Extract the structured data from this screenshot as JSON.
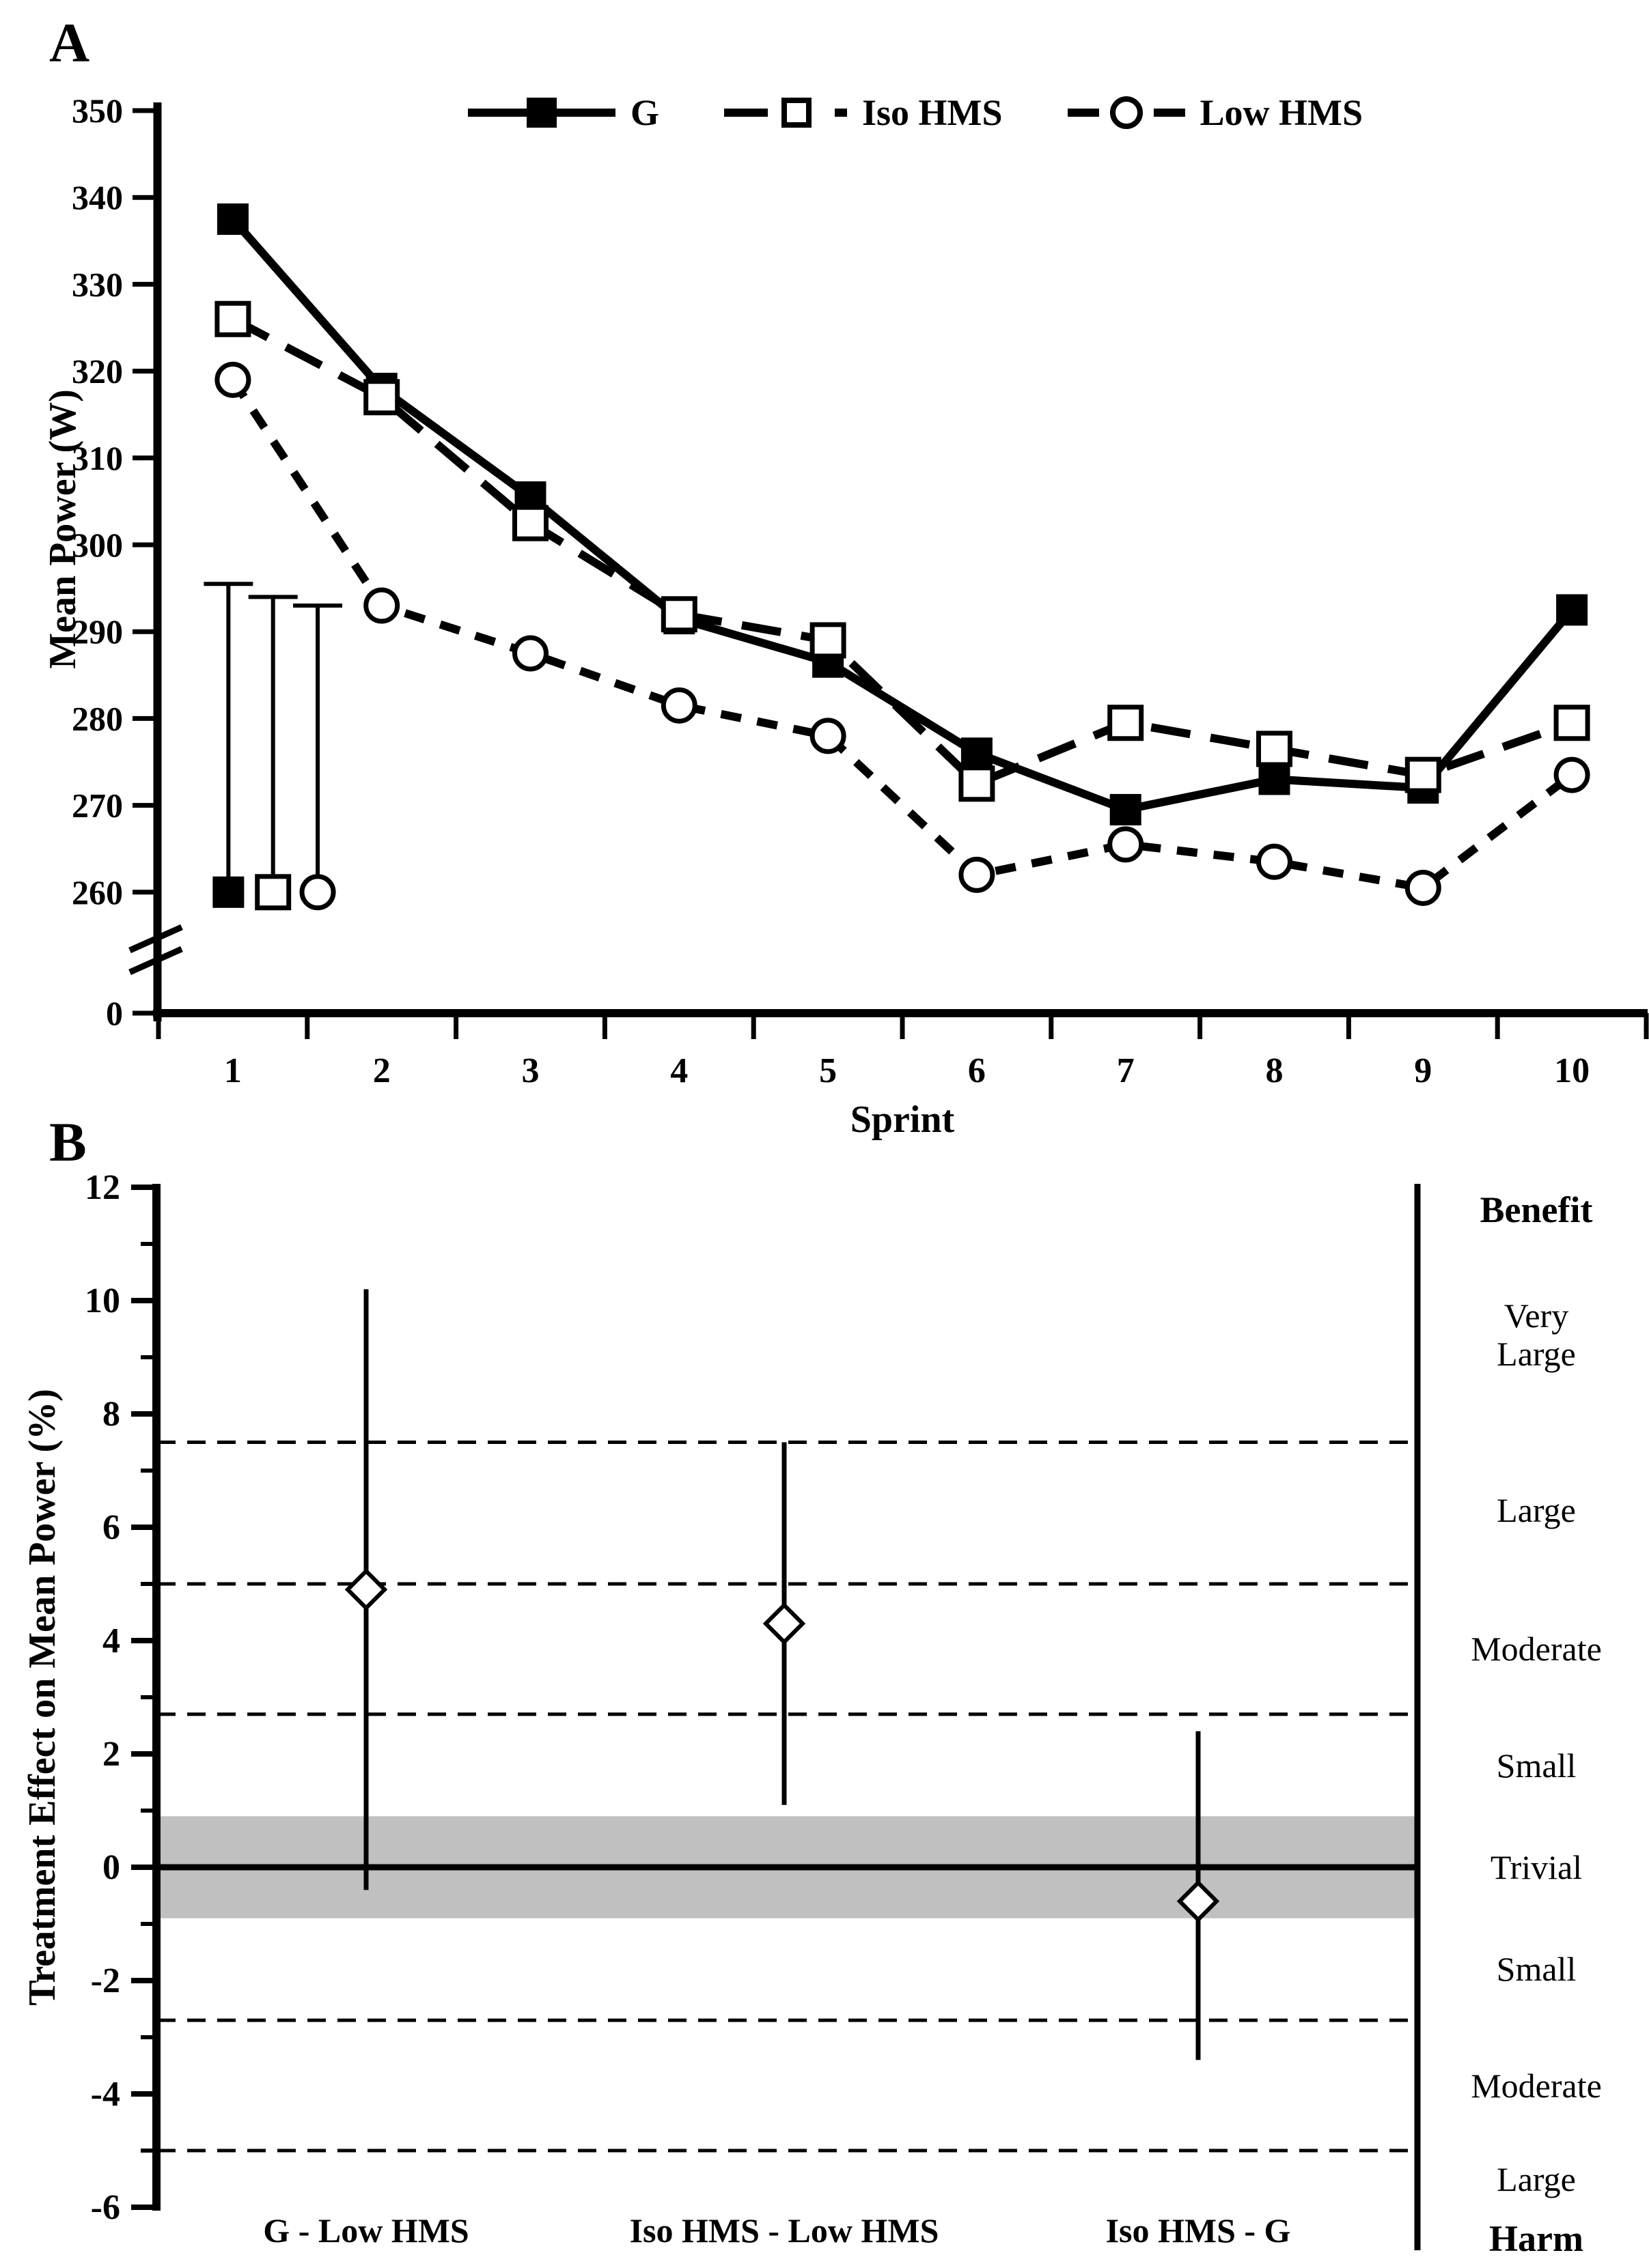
{
  "page": {
    "background": "#ffffff",
    "trivial_band_color": "#c0c0c0",
    "ink_color": "#000000"
  },
  "panel_a": {
    "letter": "A",
    "y_title": "Mean Power (W)",
    "x_title": "Sprint",
    "y_ticks": [
      350,
      340,
      330,
      320,
      310,
      300,
      290,
      280,
      270,
      260
    ],
    "y_baseline_label": "0",
    "x_ticks": [
      1,
      2,
      3,
      4,
      5,
      6,
      7,
      8,
      9,
      10
    ],
    "legend": [
      {
        "label": "G",
        "marker": "filled-square-icon",
        "line": "solid"
      },
      {
        "label": "Iso HMS",
        "marker": "open-square-icon",
        "line": "long-dash"
      },
      {
        "label": "Low HMS",
        "marker": "open-circle-icon",
        "line": "short-dash"
      }
    ]
  },
  "panel_b": {
    "letter": "B",
    "y_title": "Treatment Effect on Mean Power (%)",
    "right_labels": [
      {
        "text": "Benefit",
        "bold": true,
        "y": 11.6
      },
      {
        "text": "Very\nLarge",
        "bold": false,
        "y": 9.4
      },
      {
        "text": "Large",
        "bold": false,
        "y": 6.3
      },
      {
        "text": "Moderate",
        "bold": false,
        "y": 3.85
      },
      {
        "text": "Small",
        "bold": false,
        "y": 1.8
      },
      {
        "text": "Trivial",
        "bold": false,
        "y": 0
      },
      {
        "text": "Small",
        "bold": false,
        "y": -1.8
      },
      {
        "text": "Moderate",
        "bold": false,
        "y": -3.85
      },
      {
        "text": "Large",
        "bold": false,
        "y": -5.5
      },
      {
        "text": "Harm",
        "bold": true,
        "y": -6.55
      }
    ]
  },
  "chart_data": [
    {
      "type": "line",
      "panel": "A",
      "xlabel": "Sprint",
      "ylabel": "Mean Power (W)",
      "x": [
        1,
        2,
        3,
        4,
        5,
        6,
        7,
        8,
        9,
        10
      ],
      "ylim_display": [
        260,
        350
      ],
      "y_tick_step": 10,
      "axis_break_to_zero": true,
      "legend_position": "top-center",
      "grid": false,
      "series": [
        {
          "name": "G",
          "marker": "filled-square",
          "line": "solid",
          "values": [
            337.5,
            318,
            305.5,
            291.5,
            286.5,
            276,
            269.5,
            273,
            272,
            292.5
          ]
        },
        {
          "name": "Iso HMS",
          "marker": "open-square",
          "line": "long-dash",
          "values": [
            326,
            317,
            302.5,
            292,
            289,
            272.5,
            279.5,
            276.5,
            273.5,
            279.5
          ]
        },
        {
          "name": "Low HMS",
          "marker": "open-circle",
          "line": "short-dash",
          "values": [
            319,
            293,
            287.5,
            281.5,
            278,
            262,
            265.5,
            263.5,
            260.5,
            273.5
          ]
        }
      ],
      "error_bars": [
        {
          "marker": "filled-square",
          "x": 0.97,
          "bottom": 260,
          "top": 295.5
        },
        {
          "marker": "open-square",
          "x": 1.27,
          "bottom": 260,
          "top": 294
        },
        {
          "marker": "open-circle",
          "x": 1.57,
          "bottom": 260,
          "top": 293
        }
      ]
    },
    {
      "type": "scatter",
      "panel": "B",
      "ylabel": "Treatment Effect on Mean Power (%)",
      "ylim": [
        -6,
        12
      ],
      "y_ticks": [
        12,
        10,
        8,
        6,
        4,
        2,
        0,
        -2,
        -4,
        -6
      ],
      "minor_tick_step": 1,
      "threshold_lines": [
        7.5,
        5.0,
        2.7,
        -2.7,
        -5.0
      ],
      "trivial_band": [
        -0.9,
        0.9
      ],
      "zero_line": 0,
      "marker": "open-diamond",
      "comparisons": [
        {
          "label": "G - Low HMS",
          "effect": 4.9,
          "ci_low": -0.4,
          "ci_high": 10.2
        },
        {
          "label": "Iso HMS - Low HMS",
          "effect": 4.3,
          "ci_low": 1.1,
          "ci_high": 7.5
        },
        {
          "label": "Iso HMS - G",
          "effect": -0.6,
          "ci_low": -3.4,
          "ci_high": 2.4
        }
      ]
    }
  ]
}
